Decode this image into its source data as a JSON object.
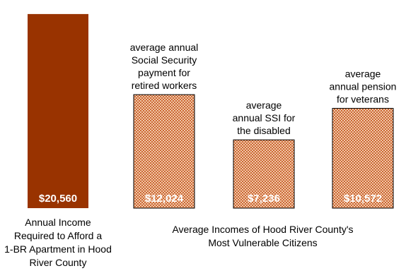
{
  "chart_data": {
    "type": "bar",
    "categories": [
      "$20,560",
      "$12,024",
      "$7,236",
      "$10,572"
    ],
    "values": [
      20560,
      12024,
      7236,
      10572
    ],
    "value_labels": [
      "$20,560",
      "$12,024",
      "$7,236",
      "$10,572"
    ],
    "bar_annotations": [
      [],
      [
        "average annual",
        "Social Security",
        "payment for",
        "retired workers"
      ],
      [
        "average",
        "annual SSI for",
        "the disabled"
      ],
      [
        "average",
        "annual pension",
        "for veterans"
      ]
    ],
    "group_labels": [
      {
        "lines": [
          "Annual Income",
          "Required to Afford a",
          "1-BR Apartment in Hood",
          "River County"
        ],
        "bars": [
          0
        ]
      },
      {
        "lines": [
          "Average Incomes of Hood River County's",
          "Most Vulnerable Citizens"
        ],
        "bars": [
          1,
          2,
          3
        ]
      }
    ],
    "ylim": [
      0,
      21300
    ],
    "grid": false,
    "legend": "none",
    "colors": {
      "solid_bar": "#993300",
      "pattern_bar": "#cc6633",
      "pattern_dot": "#f0c8a8",
      "outline": "#000000"
    },
    "bar_styles": [
      "solid",
      "pattern",
      "pattern",
      "pattern"
    ]
  }
}
